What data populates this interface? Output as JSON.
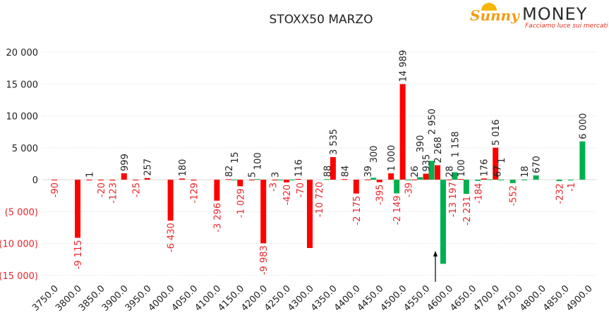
{
  "logo": {
    "brand_part1": "Sunny",
    "brand_part2": "MONEY",
    "tagline": "Facciamo luce sui mercati"
  },
  "colors": {
    "red_series": "#ff0000",
    "green_series": "#00b050",
    "negative_label": "#e8262a",
    "positive_label": "#222222"
  },
  "chart_data": {
    "type": "bar",
    "title": "STOXX50 MARZO",
    "xlabel": "",
    "ylabel": "",
    "ylim": [
      -15000,
      20000
    ],
    "yticks": [
      20000,
      15000,
      10000,
      5000,
      0,
      -5000,
      -10000,
      -15000
    ],
    "ytick_labels": [
      "20 000",
      "15 000",
      "10 000",
      "5 000",
      "0",
      "(5 000)",
      "(10 000)",
      "(15 000)"
    ],
    "xrange": [
      3750,
      4900
    ],
    "xstep": 25,
    "xtick_labels": [
      "3750.0",
      "3800.0",
      "3850.0",
      "3900.0",
      "3950.0",
      "4000.0",
      "4050.0",
      "4100.0",
      "4150.0",
      "4200.0",
      "4250.0",
      "4300.0",
      "4350.0",
      "4400.0",
      "4450.0",
      "4500.0",
      "4550.0",
      "4600.0",
      "4650.0",
      "4700.0",
      "4750.0",
      "4800.0",
      "4850.0",
      "4900.0"
    ],
    "grid": true,
    "legend": "none",
    "annotation": {
      "type": "arrow",
      "x": 4587.5,
      "label": ""
    },
    "series": [
      {
        "name": "red",
        "color": "#ff0000",
        "x": [
          3750,
          3800,
          3825,
          3850,
          3875,
          3900,
          3925,
          3950,
          4000,
          4025,
          4050,
          4100,
          4125,
          4150,
          4175,
          4200,
          4225,
          4250,
          4275,
          4300,
          4350,
          4375,
          4400,
          4425,
          4450,
          4475,
          4500,
          4525,
          4550,
          4575,
          4600,
          4625,
          4675,
          4700
        ],
        "values": [
          -90,
          -9115,
          1,
          -20,
          -123,
          999,
          -25,
          257,
          -6430,
          180,
          -129,
          -3296,
          82,
          -1029,
          5,
          -9983,
          3,
          -420,
          116,
          -10720,
          3535,
          84,
          -2175,
          39,
          -395,
          1000,
          14989,
          26,
          935,
          2268,
          28,
          100,
          176,
          5016
        ]
      },
      {
        "name": "green",
        "color": "#00b050",
        "x": [
          4125,
          4175,
          4225,
          4250,
          4325,
          4425,
          4475,
          4500,
          4525,
          4550,
          4575,
          4600,
          4625,
          4650,
          4675,
          4700,
          4725,
          4750,
          4775,
          4825,
          4850,
          4875
        ],
        "values": [
          15,
          100,
          -3,
          -70,
          88,
          300,
          -2149,
          -39,
          390,
          2950,
          -13197,
          1158,
          -2231,
          -184,
          67,
          1,
          -552,
          18,
          670,
          -232,
          -1,
          6000
        ]
      }
    ]
  }
}
